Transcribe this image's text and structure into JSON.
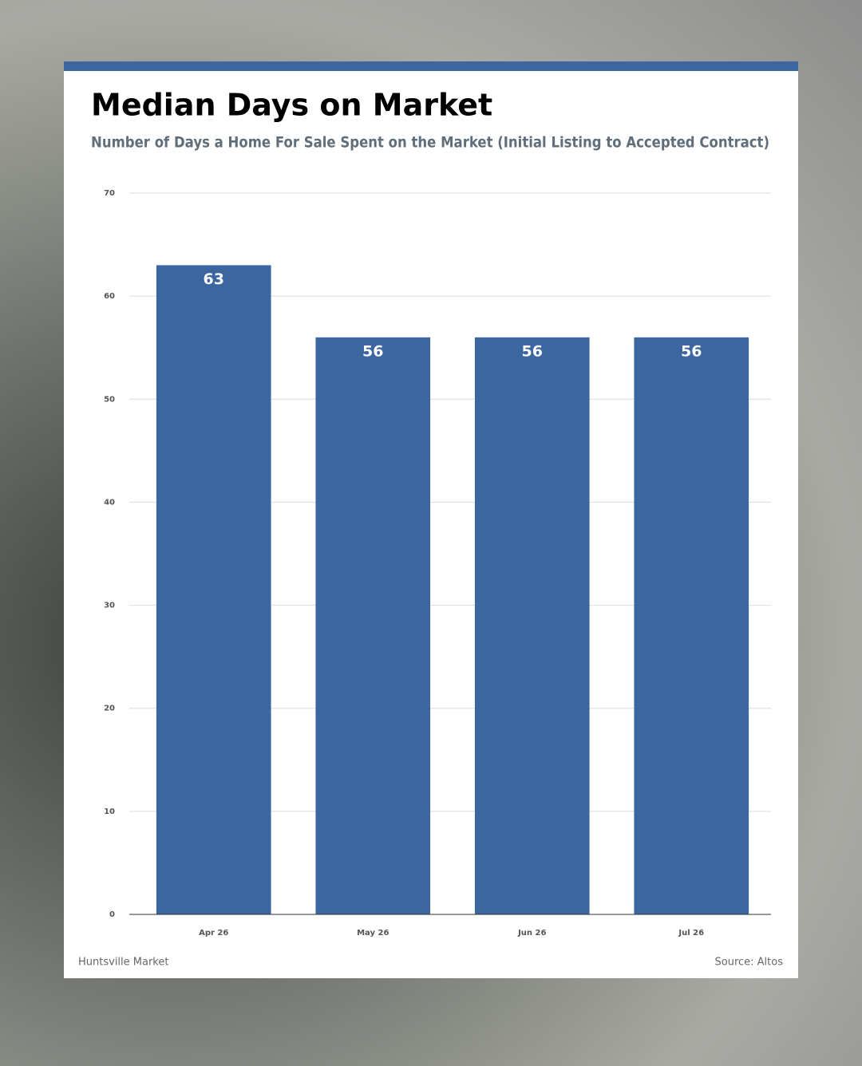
{
  "chart_data": {
    "type": "bar",
    "title": "Median Days on Market",
    "subtitle": "Number of Days a Home For Sale Spent on the Market (Initial Listing to Accepted Contract)",
    "categories": [
      "Apr 26",
      "May 26",
      "Jun 26",
      "Jul 26"
    ],
    "values": [
      63,
      56,
      56,
      56
    ],
    "color": "#3c66a0",
    "ylim": [
      0,
      70
    ],
    "yticks": [
      0,
      10,
      20,
      30,
      40,
      50,
      60,
      70
    ],
    "grid": true,
    "note": "Huntsville Market",
    "source": "Source: Altos"
  }
}
